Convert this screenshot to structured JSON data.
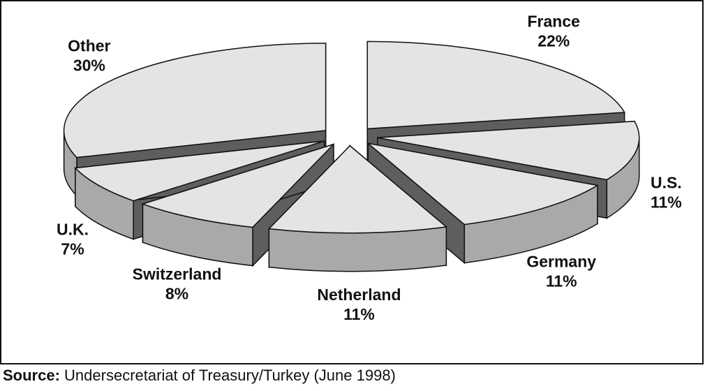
{
  "chart_data": {
    "type": "pie",
    "categories": [
      "France",
      "U.S.",
      "Germany",
      "Netherland",
      "Switzerland",
      "U.K.",
      "Other"
    ],
    "values": [
      22,
      11,
      11,
      11,
      8,
      7,
      30
    ],
    "value_labels": [
      "22%",
      "11%",
      "11%",
      "11%",
      "8%",
      "7%",
      "30%"
    ],
    "color": "#e4e4e4",
    "source_label": "Source:",
    "source": "Undersecretariat of Treasury/Turkey (June 1998)"
  }
}
